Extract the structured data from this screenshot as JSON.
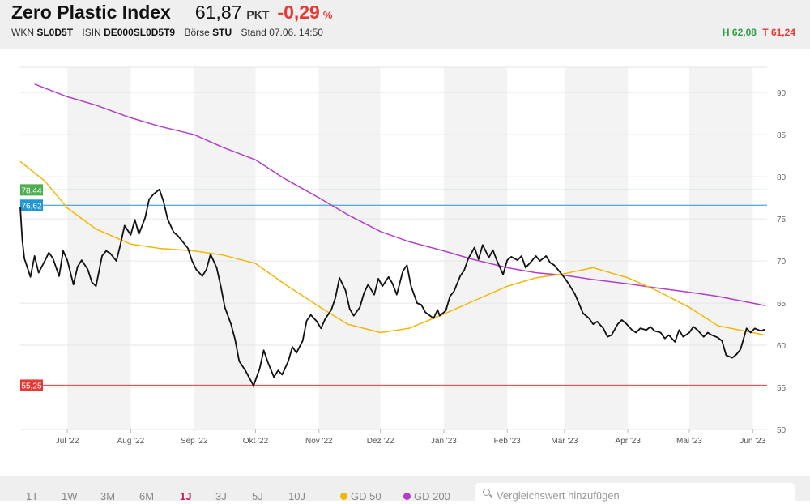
{
  "header": {
    "title": "Zero Plastic Index",
    "price": "61,87",
    "unit": "PKT",
    "change": "-0,29",
    "change_unit": "%",
    "wkn_label": "WKN",
    "wkn": "SL0D5T",
    "isin_label": "ISIN",
    "isin": "DE000SL0D5T9",
    "exchange_label": "Börse",
    "exchange": "STU",
    "stand": "Stand 07.06. 14:50",
    "high": "H 62,08",
    "low": "T 61,24"
  },
  "footer": {
    "ranges": [
      "1T",
      "1W",
      "3M",
      "6M",
      "1J",
      "3J",
      "5J",
      "10J"
    ],
    "active_range": "1J",
    "legend": [
      {
        "label": "GD 50",
        "color": "#f2b705"
      },
      {
        "label": "GD 200",
        "color": "#b13fc9"
      }
    ],
    "search_placeholder": "Vergleichswert hinzufügen"
  },
  "chart_data": {
    "type": "line",
    "ylim": [
      50,
      93
    ],
    "yticks": [
      50,
      55,
      60,
      65,
      70,
      75,
      80,
      85,
      90
    ],
    "x_axis_labels": [
      "Jul '22",
      "Aug '22",
      "Sep '22",
      "Okt '22",
      "Nov '22",
      "Dez '22",
      "Jan '23",
      "Feb '23",
      "Mär '23",
      "Apr '23",
      "Mai '23",
      "Jun '23"
    ],
    "reference_lines": [
      {
        "value": "78,44",
        "color": "#4caf50"
      },
      {
        "value": "76,62",
        "color": "#2196d3"
      },
      {
        "value": "55,25",
        "color": "#e53935"
      }
    ],
    "series": [
      {
        "name": "Zero Plastic Index",
        "color": "#111111",
        "points": [
          [
            "2022-06-08",
            76.4
          ],
          [
            "2022-06-09",
            72.5
          ],
          [
            "2022-06-10",
            70.3
          ],
          [
            "2022-06-13",
            68.1
          ],
          [
            "2022-06-15",
            70.6
          ],
          [
            "2022-06-17",
            68.6
          ],
          [
            "2022-06-20",
            70.0
          ],
          [
            "2022-06-22",
            71.0
          ],
          [
            "2022-06-24",
            70.3
          ],
          [
            "2022-06-27",
            68.2
          ],
          [
            "2022-06-29",
            71.2
          ],
          [
            "2022-07-01",
            70.1
          ],
          [
            "2022-07-04",
            67.2
          ],
          [
            "2022-07-06",
            69.3
          ],
          [
            "2022-07-08",
            70.1
          ],
          [
            "2022-07-11",
            69.0
          ],
          [
            "2022-07-13",
            67.5
          ],
          [
            "2022-07-15",
            67.0
          ],
          [
            "2022-07-18",
            70.6
          ],
          [
            "2022-07-20",
            71.2
          ],
          [
            "2022-07-22",
            70.9
          ],
          [
            "2022-07-25",
            70.0
          ],
          [
            "2022-07-27",
            72.0
          ],
          [
            "2022-07-29",
            74.2
          ],
          [
            "2022-08-01",
            73.1
          ],
          [
            "2022-08-03",
            74.9
          ],
          [
            "2022-08-05",
            73.2
          ],
          [
            "2022-08-08",
            75.1
          ],
          [
            "2022-08-10",
            77.3
          ],
          [
            "2022-08-12",
            77.9
          ],
          [
            "2022-08-15",
            78.5
          ],
          [
            "2022-08-17",
            77.1
          ],
          [
            "2022-08-19",
            75.0
          ],
          [
            "2022-08-22",
            73.4
          ],
          [
            "2022-08-24",
            73.0
          ],
          [
            "2022-08-26",
            72.4
          ],
          [
            "2022-08-29",
            71.5
          ],
          [
            "2022-08-31",
            70.0
          ],
          [
            "2022-09-02",
            69.0
          ],
          [
            "2022-09-05",
            68.2
          ],
          [
            "2022-09-07",
            69.0
          ],
          [
            "2022-09-09",
            70.8
          ],
          [
            "2022-09-12",
            69.2
          ],
          [
            "2022-09-14",
            67.0
          ],
          [
            "2022-09-16",
            64.5
          ],
          [
            "2022-09-19",
            62.5
          ],
          [
            "2022-09-21",
            60.7
          ],
          [
            "2022-09-23",
            58.1
          ],
          [
            "2022-09-26",
            57.0
          ],
          [
            "2022-09-28",
            56.1
          ],
          [
            "2022-09-30",
            55.2
          ],
          [
            "2022-10-03",
            57.2
          ],
          [
            "2022-10-05",
            59.4
          ],
          [
            "2022-10-07",
            58.0
          ],
          [
            "2022-10-10",
            56.2
          ],
          [
            "2022-10-12",
            57.0
          ],
          [
            "2022-10-14",
            56.5
          ],
          [
            "2022-10-17",
            58.1
          ],
          [
            "2022-10-19",
            59.8
          ],
          [
            "2022-10-21",
            59.1
          ],
          [
            "2022-10-24",
            60.5
          ],
          [
            "2022-10-26",
            62.9
          ],
          [
            "2022-10-28",
            63.6
          ],
          [
            "2022-10-31",
            62.8
          ],
          [
            "2022-11-02",
            62.0
          ],
          [
            "2022-11-04",
            63.1
          ],
          [
            "2022-11-07",
            64.2
          ],
          [
            "2022-11-09",
            65.6
          ],
          [
            "2022-11-11",
            68.0
          ],
          [
            "2022-11-14",
            66.5
          ],
          [
            "2022-11-16",
            64.3
          ],
          [
            "2022-11-18",
            63.5
          ],
          [
            "2022-11-21",
            64.5
          ],
          [
            "2022-11-23",
            66.2
          ],
          [
            "2022-11-25",
            67.2
          ],
          [
            "2022-11-28",
            66.0
          ],
          [
            "2022-11-30",
            67.9
          ],
          [
            "2022-12-02",
            67.0
          ],
          [
            "2022-12-05",
            68.1
          ],
          [
            "2022-12-07",
            67.3
          ],
          [
            "2022-12-09",
            66.0
          ],
          [
            "2022-12-12",
            68.8
          ],
          [
            "2022-12-14",
            69.5
          ],
          [
            "2022-12-16",
            67.0
          ],
          [
            "2022-12-19",
            65.0
          ],
          [
            "2022-12-21",
            64.8
          ],
          [
            "2022-12-23",
            63.9
          ],
          [
            "2022-12-27",
            63.2
          ],
          [
            "2022-12-29",
            64.2
          ],
          [
            "2022-12-30",
            63.5
          ],
          [
            "2023-01-02",
            64.1
          ],
          [
            "2023-01-04",
            65.8
          ],
          [
            "2023-01-06",
            66.4
          ],
          [
            "2023-01-09",
            68.2
          ],
          [
            "2023-01-11",
            68.9
          ],
          [
            "2023-01-13",
            70.3
          ],
          [
            "2023-01-16",
            71.6
          ],
          [
            "2023-01-18",
            70.2
          ],
          [
            "2023-01-20",
            71.9
          ],
          [
            "2023-01-23",
            70.4
          ],
          [
            "2023-01-25",
            71.3
          ],
          [
            "2023-01-27",
            70.0
          ],
          [
            "2023-01-30",
            68.4
          ],
          [
            "2023-02-01",
            70.1
          ],
          [
            "2023-02-03",
            70.5
          ],
          [
            "2023-02-06",
            70.1
          ],
          [
            "2023-02-08",
            70.6
          ],
          [
            "2023-02-10",
            69.2
          ],
          [
            "2023-02-13",
            70.0
          ],
          [
            "2023-02-15",
            70.6
          ],
          [
            "2023-02-17",
            70.0
          ],
          [
            "2023-02-20",
            70.6
          ],
          [
            "2023-02-22",
            69.8
          ],
          [
            "2023-02-24",
            69.5
          ],
          [
            "2023-02-27",
            68.6
          ],
          [
            "2023-03-01",
            68.0
          ],
          [
            "2023-03-03",
            67.3
          ],
          [
            "2023-03-06",
            66.1
          ],
          [
            "2023-03-08",
            65.0
          ],
          [
            "2023-03-10",
            63.8
          ],
          [
            "2023-03-13",
            63.2
          ],
          [
            "2023-03-15",
            62.5
          ],
          [
            "2023-03-17",
            62.8
          ],
          [
            "2023-03-20",
            62.0
          ],
          [
            "2023-03-22",
            61.0
          ],
          [
            "2023-03-24",
            61.2
          ],
          [
            "2023-03-27",
            62.5
          ],
          [
            "2023-03-29",
            63.0
          ],
          [
            "2023-03-31",
            62.6
          ],
          [
            "2023-04-03",
            61.8
          ],
          [
            "2023-04-05",
            61.5
          ],
          [
            "2023-04-07",
            62.0
          ],
          [
            "2023-04-10",
            61.8
          ],
          [
            "2023-04-12",
            62.2
          ],
          [
            "2023-04-14",
            61.7
          ],
          [
            "2023-04-17",
            61.5
          ],
          [
            "2023-04-19",
            60.8
          ],
          [
            "2023-04-21",
            61.2
          ],
          [
            "2023-04-24",
            60.4
          ],
          [
            "2023-04-26",
            61.8
          ],
          [
            "2023-04-28",
            61.0
          ],
          [
            "2023-05-01",
            61.5
          ],
          [
            "2023-05-03",
            62.2
          ],
          [
            "2023-05-05",
            61.8
          ],
          [
            "2023-05-08",
            61.0
          ],
          [
            "2023-05-10",
            61.5
          ],
          [
            "2023-05-12",
            61.2
          ],
          [
            "2023-05-15",
            60.9
          ],
          [
            "2023-05-17",
            60.5
          ],
          [
            "2023-05-19",
            58.8
          ],
          [
            "2023-05-22",
            58.5
          ],
          [
            "2023-05-24",
            58.9
          ],
          [
            "2023-05-26",
            59.5
          ],
          [
            "2023-05-29",
            62.0
          ],
          [
            "2023-05-31",
            61.5
          ],
          [
            "2023-06-02",
            62.0
          ],
          [
            "2023-06-05",
            61.7
          ],
          [
            "2023-06-07",
            61.87
          ]
        ]
      },
      {
        "name": "GD 50",
        "color": "#f2b705",
        "points": [
          [
            "2022-06-08",
            81.8
          ],
          [
            "2022-06-20",
            79.5
          ],
          [
            "2022-07-01",
            76.3
          ],
          [
            "2022-07-15",
            73.8
          ],
          [
            "2022-08-01",
            72.0
          ],
          [
            "2022-08-15",
            71.5
          ],
          [
            "2022-09-01",
            71.2
          ],
          [
            "2022-09-15",
            70.7
          ],
          [
            "2022-10-01",
            69.7
          ],
          [
            "2022-10-15",
            67.3
          ],
          [
            "2022-11-01",
            64.6
          ],
          [
            "2022-11-15",
            62.5
          ],
          [
            "2022-12-01",
            61.5
          ],
          [
            "2022-12-15",
            62.0
          ],
          [
            "2023-01-01",
            63.7
          ],
          [
            "2023-01-15",
            65.2
          ],
          [
            "2023-02-01",
            67.0
          ],
          [
            "2023-02-15",
            68.0
          ],
          [
            "2023-03-01",
            68.5
          ],
          [
            "2023-03-15",
            69.2
          ],
          [
            "2023-04-01",
            68.0
          ],
          [
            "2023-04-15",
            66.5
          ],
          [
            "2023-05-01",
            64.5
          ],
          [
            "2023-05-15",
            62.3
          ],
          [
            "2023-06-01",
            61.5
          ],
          [
            "2023-06-07",
            61.2
          ]
        ]
      },
      {
        "name": "GD 200",
        "color": "#b13fc9",
        "points": [
          [
            "2022-06-15",
            91.0
          ],
          [
            "2022-07-01",
            89.5
          ],
          [
            "2022-07-15",
            88.5
          ],
          [
            "2022-08-01",
            87.0
          ],
          [
            "2022-08-15",
            86.0
          ],
          [
            "2022-09-01",
            85.0
          ],
          [
            "2022-09-15",
            83.5
          ],
          [
            "2022-10-01",
            82.0
          ],
          [
            "2022-10-15",
            79.8
          ],
          [
            "2022-11-01",
            77.5
          ],
          [
            "2022-11-15",
            75.5
          ],
          [
            "2022-12-01",
            73.5
          ],
          [
            "2022-12-15",
            72.3
          ],
          [
            "2023-01-01",
            71.2
          ],
          [
            "2023-01-15",
            70.2
          ],
          [
            "2023-02-01",
            69.2
          ],
          [
            "2023-02-15",
            68.6
          ],
          [
            "2023-03-01",
            68.3
          ],
          [
            "2023-03-15",
            67.8
          ],
          [
            "2023-04-01",
            67.3
          ],
          [
            "2023-04-15",
            66.8
          ],
          [
            "2023-05-01",
            66.3
          ],
          [
            "2023-05-15",
            65.8
          ],
          [
            "2023-06-01",
            65.0
          ],
          [
            "2023-06-07",
            64.7
          ]
        ]
      }
    ]
  }
}
